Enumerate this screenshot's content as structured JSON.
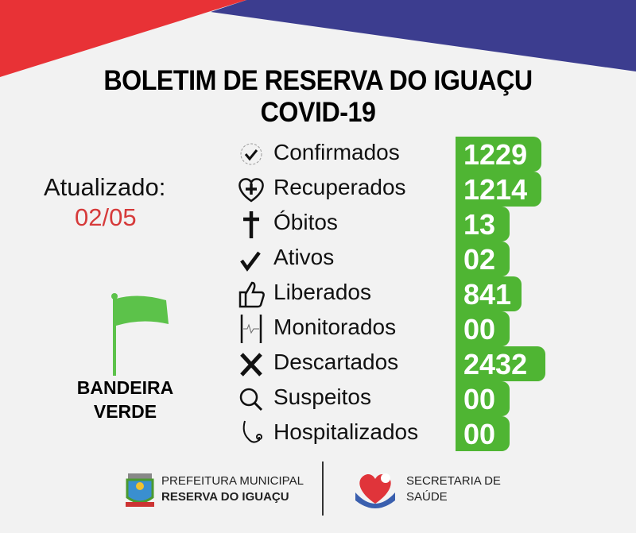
{
  "title": {
    "line1": "BOLETIM DE RESERVA DO IGUAÇU",
    "line2": "COVID-19"
  },
  "updated": {
    "label": "Atualizado:",
    "date": "02/05"
  },
  "flag": {
    "line1": "BANDEIRA",
    "line2": "VERDE",
    "color": "#5cc24a"
  },
  "stats": [
    {
      "label": "Confirmados",
      "value": "1229",
      "icon": "virus-check-icon"
    },
    {
      "label": "Recuperados",
      "value": "1214",
      "icon": "heart-plus-icon"
    },
    {
      "label": "Óbitos",
      "value": "13",
      "icon": "cross-icon"
    },
    {
      "label": "Ativos",
      "value": "02",
      "icon": "check-icon"
    },
    {
      "label": "Liberados",
      "value": "841",
      "icon": "thumbs-up-icon"
    },
    {
      "label": "Monitorados",
      "value": "00",
      "icon": "phone-heartbeat-icon"
    },
    {
      "label": "Descartados",
      "value": "2432",
      "icon": "x-icon"
    },
    {
      "label": "Suspeitos",
      "value": "00",
      "icon": "magnifier-icon"
    },
    {
      "label": "Hospitalizados",
      "value": "00",
      "icon": "stethoscope-icon"
    }
  ],
  "footer": {
    "pref_line1": "PREFEITURA MUNICIPAL",
    "pref_line2": "RESERVA DO IGUAÇU",
    "sec_line1": "SECRETARIA DE",
    "sec_line2": "SAÚDE"
  },
  "colors": {
    "red": "#e83236",
    "blue": "#3c3d8f",
    "green": "#4fb533"
  }
}
